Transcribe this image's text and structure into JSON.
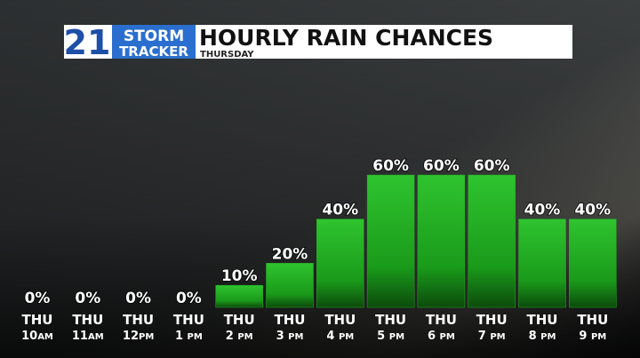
{
  "chart_data": {
    "type": "bar",
    "title": "HOURLY RAIN CHANCES",
    "subtitle": "THURSDAY",
    "logo": {
      "number": "21",
      "line1": "STORM",
      "line2": "TRACKER"
    },
    "categories": [
      {
        "day": "THU",
        "time": "10AM"
      },
      {
        "day": "THU",
        "time": "11AM"
      },
      {
        "day": "THU",
        "time": "12PM"
      },
      {
        "day": "THU",
        "time": "1 PM"
      },
      {
        "day": "THU",
        "time": "2 PM"
      },
      {
        "day": "THU",
        "time": "3 PM"
      },
      {
        "day": "THU",
        "time": "4 PM"
      },
      {
        "day": "THU",
        "time": "5 PM"
      },
      {
        "day": "THU",
        "time": "6 PM"
      },
      {
        "day": "THU",
        "time": "7 PM"
      },
      {
        "day": "THU",
        "time": "8 PM"
      },
      {
        "day": "THU",
        "time": "9 PM"
      }
    ],
    "values": [
      0,
      0,
      0,
      0,
      10,
      20,
      40,
      60,
      60,
      60,
      40,
      40
    ],
    "value_labels": [
      "0%",
      "0%",
      "0%",
      "0%",
      "10%",
      "20%",
      "40%",
      "60%",
      "60%",
      "60%",
      "40%",
      "40%"
    ],
    "color": "#22b022"
  }
}
